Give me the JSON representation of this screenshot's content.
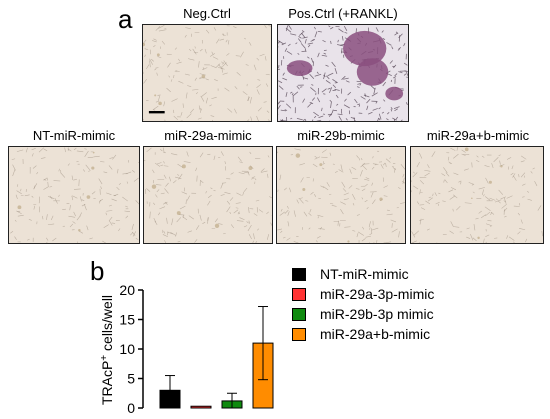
{
  "figure": {
    "panel_a_letter": "a",
    "panel_b_letter": "b"
  },
  "panel_a": {
    "top_row": [
      {
        "label": "Neg.Ctrl",
        "stain": "pale"
      },
      {
        "label": "Pos.Ctrl (+RANKL)",
        "stain": "purple"
      }
    ],
    "bottom_row": [
      {
        "label": "NT-miR-mimic",
        "stain": "pale"
      },
      {
        "label": "miR-29a-mimic",
        "stain": "pale"
      },
      {
        "label": "miR-29b-mimic",
        "stain": "pale"
      },
      {
        "label": "miR-29a+b-mimic",
        "stain": "pale"
      }
    ],
    "colors": {
      "pale_bg": "#ece2d6",
      "purple_stain": "#8a4f7f"
    }
  },
  "chart_data": {
    "type": "bar",
    "ylabel_main": "TRAcP",
    "ylabel_sup": "+",
    "ylabel_rest": " cells/well",
    "ylim": [
      0,
      20
    ],
    "yticks": [
      0,
      5,
      10,
      15,
      20
    ],
    "series": [
      {
        "name": "NT-miR-mimic",
        "color": "#000000",
        "value": 3.0,
        "error": 2.5
      },
      {
        "name": "miR-29a-3p-mimic",
        "color": "#ff3333",
        "value": 0.3,
        "error": 0.0
      },
      {
        "name": "miR-29b-3p mimic",
        "color": "#0f8a0f",
        "value": 1.2,
        "error": 1.3
      },
      {
        "name": "miR-29a+b-mimic",
        "color": "#ff8c00",
        "value": 11.0,
        "error": 6.2
      }
    ],
    "legend_position": "right"
  }
}
